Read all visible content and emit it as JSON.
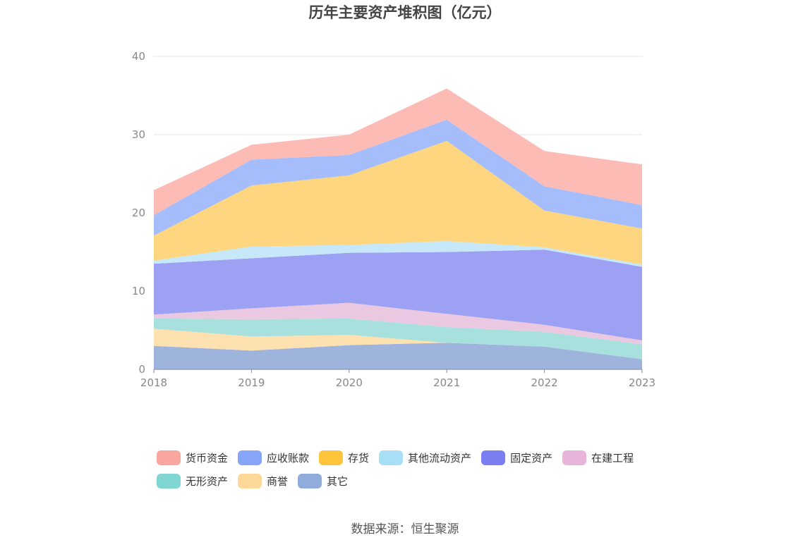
{
  "chart_data": {
    "type": "area",
    "stacked": true,
    "title": "历年主要资产堆积图（亿元）",
    "x": [
      "2018",
      "2019",
      "2020",
      "2021",
      "2022",
      "2023"
    ],
    "ylim": [
      0,
      40
    ],
    "yticks": [
      "0",
      "10",
      "20",
      "30",
      "40"
    ],
    "grid": true,
    "legend_position": "bottom",
    "series": [
      {
        "name": "其它",
        "color": "#9fb4dc",
        "values": [
          3.0,
          2.4,
          3.1,
          3.4,
          2.9,
          1.3
        ]
      },
      {
        "name": "商誉",
        "color": "#fde1b0",
        "values": [
          2.2,
          1.8,
          1.3,
          0.0,
          0.0,
          0.0
        ]
      },
      {
        "name": "无形资产",
        "color": "#a8e0de",
        "values": [
          1.3,
          2.2,
          2.1,
          2.0,
          1.9,
          1.9
        ]
      },
      {
        "name": "在建工程",
        "color": "#ebc8e1",
        "values": [
          0.5,
          1.4,
          2.0,
          1.7,
          0.9,
          0.5
        ]
      },
      {
        "name": "固定资产",
        "color": "#9da1f4",
        "values": [
          6.5,
          6.4,
          6.4,
          7.9,
          9.6,
          9.4
        ]
      },
      {
        "name": "其他流动资产",
        "color": "#c7e8f8",
        "values": [
          0.4,
          1.5,
          1.0,
          1.4,
          0.3,
          0.3
        ]
      },
      {
        "name": "存货",
        "color": "#fed67f",
        "values": [
          3.2,
          7.8,
          8.9,
          12.8,
          4.7,
          4.6
        ]
      },
      {
        "name": "应收账款",
        "color": "#a6bdfb",
        "values": [
          2.6,
          3.3,
          2.6,
          2.7,
          3.1,
          3.0
        ]
      },
      {
        "name": "货币资金",
        "color": "#fdbbb6",
        "values": [
          3.2,
          1.9,
          2.6,
          4.0,
          4.5,
          5.2
        ]
      }
    ]
  },
  "legend": [
    {
      "label": "货币资金",
      "color": "#f9a69e"
    },
    {
      "label": "应收账款",
      "color": "#86a5f8"
    },
    {
      "label": "存货",
      "color": "#fdc43c"
    },
    {
      "label": "其他流动资产",
      "color": "#a8dff7"
    },
    {
      "label": "固定资产",
      "color": "#7b7ef0"
    },
    {
      "label": "在建工程",
      "color": "#e8b4d9"
    },
    {
      "label": "无形资产",
      "color": "#80d6d3"
    },
    {
      "label": "商誉",
      "color": "#fdd898"
    },
    {
      "label": "其它",
      "color": "#91abda"
    }
  ],
  "source": "数据来源：恒生聚源"
}
